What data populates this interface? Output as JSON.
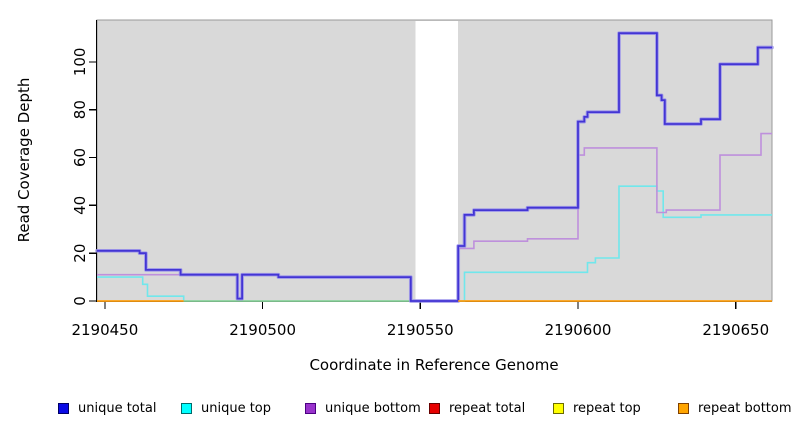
{
  "y_axis": {
    "label": "Read Coverage Depth",
    "ticks": [
      0,
      20,
      40,
      60,
      80,
      100
    ]
  },
  "x_axis": {
    "label": "Coordinate in Reference Genome",
    "ticks": [
      2190450,
      2190500,
      2190550,
      2190600,
      2190650
    ]
  },
  "legend": [
    {
      "label": "unique total",
      "fill": "#0a0ae6",
      "border": "#000066"
    },
    {
      "label": "unique top",
      "fill": "#00ffff",
      "border": "#006b6b"
    },
    {
      "label": "unique bottom",
      "fill": "#9933cc",
      "border": "#4b0082"
    },
    {
      "label": "repeat total",
      "fill": "#e60000",
      "border": "#660000"
    },
    {
      "label": "repeat top",
      "fill": "#ffff00",
      "border": "#6b6b00"
    },
    {
      "label": "repeat bottom",
      "fill": "#ffa500",
      "border": "#804000"
    }
  ],
  "chart_data": {
    "type": "line",
    "subtype": "step",
    "title": "",
    "xlabel": "Coordinate in Reference Genome",
    "ylabel": "Read Coverage Depth",
    "x_range": [
      2190447.5,
      2190661.5
    ],
    "y_range": [
      0,
      117.5
    ],
    "x_ticks": [
      2190450,
      2190500,
      2190550,
      2190600,
      2190650
    ],
    "y_ticks": [
      0,
      20,
      40,
      60,
      80,
      100
    ],
    "grid": "off",
    "legend_position": "bottom",
    "panel_bg": "#d9d9d9",
    "panel_border": "#999999",
    "masked_region": {
      "x0": 2190548.5,
      "x1": 2190562,
      "color": "#ffffff"
    },
    "series": [
      {
        "name": "unique top",
        "color": "#70e7ec",
        "width": 1.6,
        "layer": 1,
        "x_end": 2190661.5,
        "steps": [
          [
            2190447.5,
            10
          ],
          [
            2190462,
            7
          ],
          [
            2190463.5,
            2
          ],
          [
            2190475,
            0
          ],
          [
            2190564,
            12
          ],
          [
            2190603,
            16
          ],
          [
            2190605.5,
            18
          ],
          [
            2190613,
            48
          ],
          [
            2190625,
            46
          ],
          [
            2190627,
            35
          ],
          [
            2190639,
            36
          ]
        ]
      },
      {
        "name": "unique bottom",
        "color": "#be90dc",
        "width": 1.6,
        "layer": 2,
        "x_end": 2190661.5,
        "steps": [
          [
            2190447.5,
            11
          ],
          [
            2190492,
            1
          ],
          [
            2190493.5,
            11
          ],
          [
            2190505,
            10
          ],
          [
            2190547,
            0
          ],
          [
            2190562,
            22
          ],
          [
            2190567,
            25
          ],
          [
            2190584,
            26
          ],
          [
            2190600,
            61
          ],
          [
            2190602,
            64
          ],
          [
            2190625,
            37
          ],
          [
            2190628,
            38
          ],
          [
            2190645,
            61
          ],
          [
            2190658,
            70
          ]
        ]
      },
      {
        "name": "unique total",
        "color": "#4335d4",
        "halo": "#9a93ea",
        "width": 1.8,
        "layer": 4,
        "x_end": 2190661.5,
        "steps": [
          [
            2190447.5,
            21
          ],
          [
            2190461,
            20
          ],
          [
            2190463,
            13
          ],
          [
            2190474,
            11
          ],
          [
            2190492,
            1
          ],
          [
            2190493.5,
            11
          ],
          [
            2190505,
            10
          ],
          [
            2190547,
            0
          ],
          [
            2190562,
            23
          ],
          [
            2190564,
            36
          ],
          [
            2190567,
            38
          ],
          [
            2190584,
            39
          ],
          [
            2190600,
            75
          ],
          [
            2190602,
            77
          ],
          [
            2190603,
            79
          ],
          [
            2190613,
            112
          ],
          [
            2190625,
            86
          ],
          [
            2190626.5,
            84
          ],
          [
            2190627.5,
            74
          ],
          [
            2190639,
            76
          ],
          [
            2190645,
            99
          ],
          [
            2190657,
            106
          ]
        ]
      }
    ],
    "zero_segments": [
      {
        "name": "unique top / repeat top overlap",
        "color": "#8fd08f",
        "width": 1.6,
        "layer": 3,
        "x0": 2190475,
        "x1": 2190547,
        "y": 0
      },
      {
        "name": "repeat bottom",
        "color": "#ffa013",
        "width": 1.8,
        "layer": 5,
        "x0": 2190447.5,
        "x1": 2190475,
        "y": 0
      },
      {
        "name": "repeat bottom",
        "color": "#ffa013",
        "width": 1.8,
        "layer": 5,
        "x0": 2190562,
        "x1": 2190661.5,
        "y": 0
      }
    ]
  }
}
